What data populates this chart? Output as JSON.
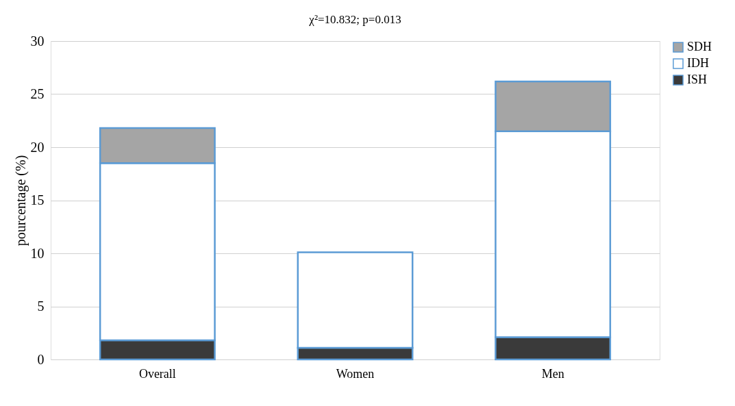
{
  "chart_data": {
    "type": "bar",
    "title": "χ²=10.832; p=0.013",
    "ylabel": "pourcentage (%)",
    "categories": [
      "Overall",
      "Women",
      "Men"
    ],
    "stacked": true,
    "series": [
      {
        "name": "ISH",
        "color": "#3a3a3a",
        "values": [
          1.8,
          1.1,
          2.1
        ]
      },
      {
        "name": "IDH",
        "color": "#ffffff",
        "values": [
          16.7,
          9.0,
          19.4
        ]
      },
      {
        "name": "SDH",
        "color": "#a5a5a5",
        "values": [
          3.3,
          null,
          4.7
        ]
      }
    ],
    "ylim": [
      0,
      30
    ],
    "yticks": [
      0,
      5,
      10,
      15,
      20,
      25,
      30
    ],
    "grid": "y",
    "legend": "right"
  }
}
